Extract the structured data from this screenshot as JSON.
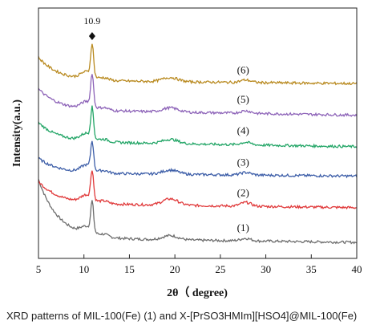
{
  "chart_data": {
    "type": "line",
    "xlabel": "2θ（ degree)",
    "ylabel": "Intensity(a.u.)",
    "xlim": [
      5,
      40
    ],
    "xticks": [
      5,
      10,
      15,
      20,
      25,
      30,
      35,
      40
    ],
    "peak_annotation": {
      "label": "10.9",
      "x": 10.9,
      "marker": "diamond"
    },
    "series": [
      {
        "name": "(1)",
        "color": "#6e6e6e",
        "label_x": 27.5,
        "baseline": 0.02,
        "start": 0.3,
        "peak": 0.2,
        "tail": 0.0,
        "bump": 0.02
      },
      {
        "name": "(2)",
        "color": "#e0393a",
        "label_x": 27.5,
        "baseline": 0.185,
        "start": 0.29,
        "peak": 0.36,
        "tail": 0.165,
        "bump": 0.03
      },
      {
        "name": "(3)",
        "color": "#3d5ea8",
        "label_x": 27.5,
        "baseline": 0.33,
        "start": 0.4,
        "peak": 0.5,
        "tail": 0.315,
        "bump": 0.02
      },
      {
        "name": "(4)",
        "color": "#22a566",
        "label_x": 27.5,
        "baseline": 0.48,
        "start": 0.57,
        "peak": 0.66,
        "tail": 0.455,
        "bump": 0.02
      },
      {
        "name": "(5)",
        "color": "#8d63b8",
        "label_x": 27.5,
        "baseline": 0.63,
        "start": 0.73,
        "peak": 0.82,
        "tail": 0.605,
        "bump": 0.02
      },
      {
        "name": "(6)",
        "color": "#b98a20",
        "label_x": 27.5,
        "baseline": 0.77,
        "start": 0.88,
        "peak": 0.96,
        "tail": 0.755,
        "bump": 0.02
      }
    ]
  },
  "caption": "XRD patterns of MIL-100(Fe) (1) and X-[PrSO3HMIm][HSO4]@MIL-100(Fe)"
}
